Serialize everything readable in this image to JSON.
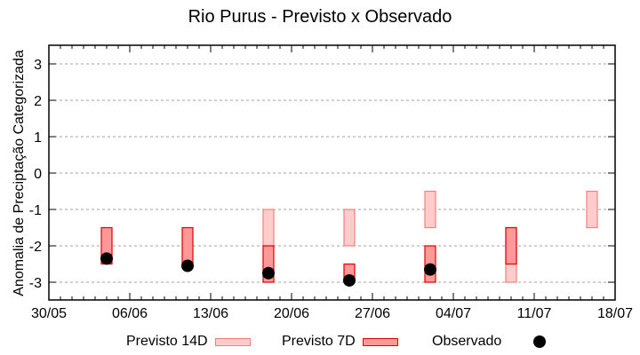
{
  "chart_data": {
    "type": "bar",
    "subtype": "floating-range-bars-with-points",
    "title": "Rio Purus - Previsto x Observado",
    "xlabel": "",
    "ylabel": "Anomalia de Preciptação Categorizada",
    "ylim": [
      -3.5,
      3.5
    ],
    "yticks": [
      3,
      2,
      1,
      0,
      -1,
      -2,
      -3
    ],
    "xticks": [
      "30/05",
      "06/06",
      "13/06",
      "20/06",
      "27/06",
      "04/07",
      "11/07",
      "18/07"
    ],
    "grid": "horizontal dashed",
    "legend_position": "bottom",
    "categories": [
      "04/06",
      "11/06",
      "18/06",
      "25/06",
      "02/07",
      "09/07",
      "16/07"
    ],
    "series": [
      {
        "name": "Previsto 14D",
        "color": "#ffcccc",
        "border": "#f08080",
        "ranges": [
          null,
          null,
          [
            -2,
            -1
          ],
          [
            -2,
            -1
          ],
          [
            -1.5,
            -0.5
          ],
          [
            -3,
            -1.5
          ],
          [
            -1.5,
            -0.5
          ]
        ]
      },
      {
        "name": "Previsto 7D",
        "color": "#ff9999",
        "border": "#dd0000",
        "ranges": [
          [
            -2.5,
            -1.5
          ],
          [
            -2.5,
            -1.5
          ],
          [
            -3,
            -2
          ],
          [
            -3,
            -2.5
          ],
          [
            -3,
            -2
          ],
          [
            -2.5,
            -1.5
          ],
          null
        ]
      },
      {
        "name": "Observado",
        "color": "#000000",
        "values": [
          -2.35,
          -2.55,
          -2.75,
          -2.95,
          -2.65,
          null,
          null
        ]
      }
    ]
  },
  "legend": {
    "item1": "Previsto 14D",
    "item2": "Previsto 7D",
    "item3": "Observado"
  }
}
